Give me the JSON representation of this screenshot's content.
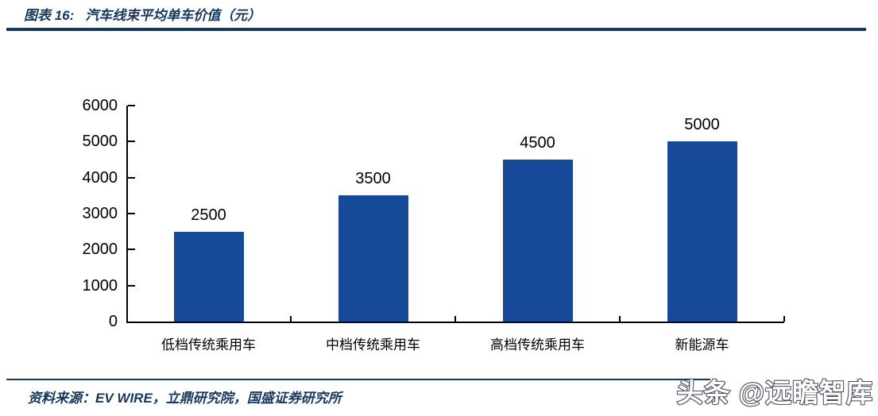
{
  "header": {
    "figure_label": "图表 16:",
    "title": "汽车线束平均单车价值（元）"
  },
  "chart_data": {
    "type": "bar",
    "title": "汽车线束平均单车价值（元）",
    "categories": [
      "低档传统乘用车",
      "中档传统乘用车",
      "高档传统乘用车",
      "新能源车"
    ],
    "values": [
      2500,
      3500,
      4500,
      5000
    ],
    "value_labels": [
      "2500",
      "3500",
      "4500",
      "5000"
    ],
    "xlabel": "",
    "ylabel": "",
    "ylim": [
      0,
      6000
    ],
    "ytick_step": 1000,
    "y_tick_labels": [
      "0",
      "1000",
      "2000",
      "3000",
      "4000",
      "5000",
      "6000"
    ],
    "grid": false,
    "legend": false,
    "bar_color": "#164A99"
  },
  "footer": {
    "source_text": "资料来源：EV WIRE，立鼎研究院，国盛证券研究所",
    "watermark": "头条 @远瞻智库"
  },
  "colors": {
    "accent_navy": "#17375E",
    "bar_blue": "#164A99",
    "axis_black": "#000000"
  }
}
